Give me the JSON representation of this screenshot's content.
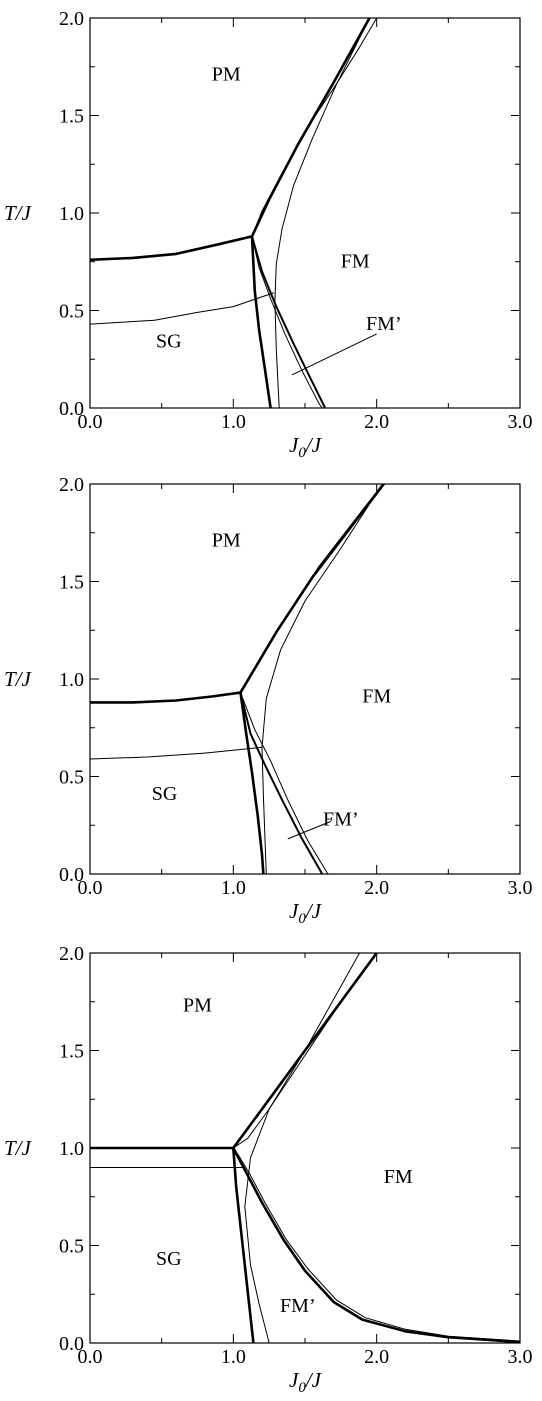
{
  "chart_data": [
    {
      "type": "line",
      "panel": "top",
      "xlabel": "J0/J",
      "ylabel": "T/J",
      "xlim": [
        0,
        3
      ],
      "ylim": [
        0,
        2
      ],
      "x_tick_labels": [
        "0.0",
        "1.0",
        "2.0",
        "3.0"
      ],
      "y_tick_labels": [
        "0.0",
        "0.5",
        "1.0",
        "1.5",
        "2.0"
      ],
      "grid": false,
      "region_labels": [
        {
          "text": "PM",
          "x": 0.95,
          "y": 1.68
        },
        {
          "text": "FM",
          "x": 1.85,
          "y": 0.72
        },
        {
          "text": "SG",
          "x": 0.55,
          "y": 0.31
        },
        {
          "text": "FM’",
          "x": 2.05,
          "y": 0.4
        }
      ],
      "pointer": {
        "from": [
          2.0,
          0.38
        ],
        "to": [
          1.41,
          0.17
        ]
      },
      "series": [
        {
          "stroke": 2.6,
          "points": [
            [
              0,
              0.76
            ],
            [
              0.3,
              0.77
            ],
            [
              0.6,
              0.79
            ],
            [
              0.9,
              0.84
            ],
            [
              1.13,
              0.88
            ]
          ]
        },
        {
          "stroke": 2.6,
          "points": [
            [
              1.13,
              0.88
            ],
            [
              1.25,
              1.07
            ],
            [
              1.45,
              1.35
            ],
            [
              1.7,
              1.67
            ],
            [
              1.95,
              2.0
            ]
          ]
        },
        {
          "stroke": 1.0,
          "points": [
            [
              1.13,
              0.88
            ],
            [
              1.2,
              1.01
            ],
            [
              1.3,
              1.15
            ],
            [
              1.5,
              1.42
            ],
            [
              1.7,
              1.64
            ],
            [
              1.88,
              1.85
            ],
            [
              2.0,
              2.0
            ]
          ]
        },
        {
          "stroke": 2.6,
          "points": [
            [
              1.13,
              0.88
            ],
            [
              1.15,
              0.6
            ],
            [
              1.18,
              0.4
            ],
            [
              1.22,
              0.2
            ],
            [
              1.26,
              0.0
            ]
          ]
        },
        {
          "stroke": 1.0,
          "points": [
            [
              1.13,
              0.88
            ],
            [
              1.18,
              0.72
            ],
            [
              1.26,
              0.56
            ],
            [
              1.36,
              0.38
            ],
            [
              1.48,
              0.19
            ],
            [
              1.6,
              0.02
            ],
            [
              1.62,
              0.0
            ]
          ]
        },
        {
          "stroke": 2.0,
          "points": [
            [
              1.13,
              0.88
            ],
            [
              1.2,
              0.7
            ],
            [
              1.3,
              0.52
            ],
            [
              1.42,
              0.33
            ],
            [
              1.54,
              0.15
            ],
            [
              1.64,
              0.0
            ]
          ]
        },
        {
          "stroke": 1.0,
          "points": [
            [
              1.95,
              2.0
            ],
            [
              1.72,
              1.66
            ],
            [
              1.55,
              1.38
            ],
            [
              1.42,
              1.14
            ],
            [
              1.34,
              0.92
            ],
            [
              1.3,
              0.74
            ],
            [
              1.29,
              0.55
            ],
            [
              1.3,
              0.3
            ],
            [
              1.32,
              0.0
            ]
          ]
        },
        {
          "stroke": 1.0,
          "points": [
            [
              0,
              0.43
            ],
            [
              0.45,
              0.45
            ],
            [
              0.75,
              0.49
            ],
            [
              1.0,
              0.52
            ],
            [
              1.28,
              0.59
            ]
          ]
        }
      ]
    },
    {
      "type": "line",
      "panel": "middle",
      "xlabel": "J0/J",
      "ylabel": "T/J",
      "xlim": [
        0,
        3
      ],
      "ylim": [
        0,
        2
      ],
      "x_tick_labels": [
        "0.0",
        "1.0",
        "2.0",
        "3.0"
      ],
      "y_tick_labels": [
        "0.0",
        "0.5",
        "1.0",
        "1.5",
        "2.0"
      ],
      "grid": false,
      "region_labels": [
        {
          "text": "PM",
          "x": 0.95,
          "y": 1.68
        },
        {
          "text": "FM",
          "x": 2.0,
          "y": 0.88
        },
        {
          "text": "SG",
          "x": 0.52,
          "y": 0.38
        },
        {
          "text": "FM’",
          "x": 1.75,
          "y": 0.25
        }
      ],
      "pointer": {
        "from": [
          1.68,
          0.27
        ],
        "to": [
          1.38,
          0.18
        ]
      },
      "series": [
        {
          "stroke": 2.6,
          "points": [
            [
              0,
              0.88
            ],
            [
              0.3,
              0.88
            ],
            [
              0.6,
              0.89
            ],
            [
              0.85,
              0.91
            ],
            [
              1.05,
              0.93
            ]
          ]
        },
        {
          "stroke": 2.6,
          "points": [
            [
              1.05,
              0.93
            ],
            [
              1.3,
              1.24
            ],
            [
              1.55,
              1.52
            ],
            [
              1.8,
              1.76
            ],
            [
              2.05,
              2.0
            ]
          ]
        },
        {
          "stroke": 1.0,
          "points": [
            [
              1.05,
              0.93
            ],
            [
              1.35,
              1.3
            ],
            [
              1.6,
              1.58
            ],
            [
              1.82,
              1.79
            ],
            [
              2.0,
              1.96
            ],
            [
              2.04,
              2.0
            ]
          ]
        },
        {
          "stroke": 2.6,
          "points": [
            [
              1.05,
              0.93
            ],
            [
              1.09,
              0.72
            ],
            [
              1.13,
              0.52
            ],
            [
              1.17,
              0.3
            ],
            [
              1.2,
              0.1
            ],
            [
              1.21,
              0.0
            ]
          ]
        },
        {
          "stroke": 2.0,
          "points": [
            [
              1.05,
              0.93
            ],
            [
              1.12,
              0.72
            ],
            [
              1.22,
              0.56
            ],
            [
              1.34,
              0.38
            ],
            [
              1.48,
              0.18
            ],
            [
              1.62,
              0.0
            ]
          ]
        },
        {
          "stroke": 1.0,
          "points": [
            [
              1.05,
              0.93
            ],
            [
              1.15,
              0.74
            ],
            [
              1.26,
              0.58
            ],
            [
              1.38,
              0.38
            ],
            [
              1.52,
              0.17
            ],
            [
              1.66,
              0.0
            ]
          ]
        },
        {
          "stroke": 1.0,
          "points": [
            [
              2.04,
              2.0
            ],
            [
              1.75,
              1.67
            ],
            [
              1.5,
              1.4
            ],
            [
              1.33,
              1.15
            ],
            [
              1.23,
              0.9
            ],
            [
              1.2,
              0.65
            ],
            [
              1.21,
              0.4
            ],
            [
              1.23,
              0.0
            ]
          ]
        },
        {
          "stroke": 1.0,
          "points": [
            [
              0,
              0.59
            ],
            [
              0.4,
              0.6
            ],
            [
              0.8,
              0.62
            ],
            [
              1.2,
              0.65
            ]
          ]
        }
      ]
    },
    {
      "type": "line",
      "panel": "bottom",
      "xlabel": "J0/J",
      "ylabel": "T/J",
      "xlim": [
        0,
        3
      ],
      "ylim": [
        0,
        2
      ],
      "x_tick_labels": [
        "0.0",
        "1.0",
        "2.0",
        "3.0"
      ],
      "y_tick_labels": [
        "0.0",
        "0.5",
        "1.0",
        "1.5",
        "2.0"
      ],
      "grid": false,
      "region_labels": [
        {
          "text": "PM",
          "x": 0.75,
          "y": 1.7
        },
        {
          "text": "FM",
          "x": 2.15,
          "y": 0.82
        },
        {
          "text": "SG",
          "x": 0.55,
          "y": 0.4
        },
        {
          "text": "FM’",
          "x": 1.45,
          "y": 0.16
        }
      ],
      "pointer": null,
      "series": [
        {
          "stroke": 2.6,
          "points": [
            [
              0,
              1.0
            ],
            [
              0.5,
              1.0
            ],
            [
              1.0,
              1.0
            ]
          ]
        },
        {
          "stroke": 2.6,
          "points": [
            [
              1.0,
              1.0
            ],
            [
              1.25,
              1.25
            ],
            [
              1.5,
              1.5
            ],
            [
              1.75,
              1.75
            ],
            [
              2.0,
              2.0
            ]
          ]
        },
        {
          "stroke": 1.0,
          "points": [
            [
              1.0,
              1.0
            ],
            [
              1.1,
              1.05
            ],
            [
              1.25,
              1.2
            ],
            [
              1.45,
              1.42
            ],
            [
              1.65,
              1.64
            ],
            [
              1.85,
              1.85
            ],
            [
              2.0,
              2.0
            ]
          ]
        },
        {
          "stroke": 2.6,
          "points": [
            [
              1.0,
              1.0
            ],
            [
              1.02,
              0.8
            ],
            [
              1.05,
              0.6
            ],
            [
              1.08,
              0.4
            ],
            [
              1.11,
              0.2
            ],
            [
              1.14,
              0.0
            ]
          ]
        },
        {
          "stroke": 2.6,
          "points": [
            [
              1.0,
              1.0
            ],
            [
              1.1,
              0.86
            ],
            [
              1.2,
              0.72
            ],
            [
              1.35,
              0.53
            ],
            [
              1.5,
              0.37
            ],
            [
              1.7,
              0.21
            ],
            [
              1.9,
              0.12
            ],
            [
              2.2,
              0.06
            ],
            [
              2.5,
              0.03
            ],
            [
              2.8,
              0.015
            ],
            [
              3.0,
              0.005
            ]
          ]
        },
        {
          "stroke": 1.0,
          "points": [
            [
              1.03,
              0.97
            ],
            [
              1.12,
              0.86
            ],
            [
              1.22,
              0.72
            ],
            [
              1.37,
              0.53
            ],
            [
              1.52,
              0.38
            ],
            [
              1.72,
              0.22
            ],
            [
              1.92,
              0.13
            ],
            [
              2.2,
              0.07
            ],
            [
              2.5,
              0.035
            ],
            [
              2.8,
              0.02
            ],
            [
              3.0,
              0.01
            ]
          ]
        },
        {
          "stroke": 1.0,
          "points": [
            [
              1.88,
              2.0
            ],
            [
              1.5,
              1.5
            ],
            [
              1.25,
              1.2
            ],
            [
              1.12,
              0.95
            ],
            [
              1.08,
              0.7
            ],
            [
              1.12,
              0.4
            ],
            [
              1.18,
              0.2
            ],
            [
              1.25,
              0.0
            ]
          ]
        },
        {
          "stroke": 1.0,
          "points": [
            [
              0,
              0.9
            ],
            [
              0.5,
              0.9
            ],
            [
              1.06,
              0.9
            ]
          ]
        }
      ]
    }
  ]
}
